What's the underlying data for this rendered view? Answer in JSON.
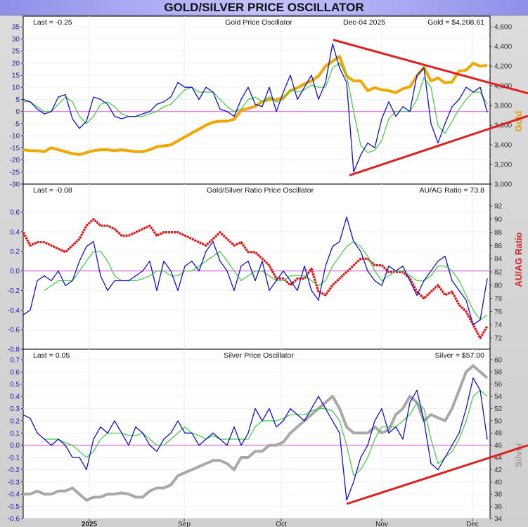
{
  "title": "GOLD/SILVER PRICE OSCILLATOR",
  "chart_data": [
    {
      "type": "line",
      "title": "Gold Price Oscillator",
      "last_label": "Last = -0.25",
      "date_label": "Dec-04  2025",
      "price_label": "Gold = $4,208.61",
      "right_axis_label": "Gold",
      "x_ticks": [
        {
          "day": 47,
          "label": "2025"
        },
        {
          "day": 114.5,
          "label": "Sep"
        },
        {
          "day": 183.5,
          "label": "Oct"
        },
        {
          "day": 255,
          "label": "Nov"
        },
        {
          "day": 319.5,
          "label": "Dec"
        }
      ],
      "xlim": [
        0,
        332
      ],
      "ylim_left": [
        -30,
        39.4
      ],
      "ylim_right": [
        3000,
        4709
      ],
      "left_ticks": [
        -30,
        -25,
        -20,
        -15,
        -10,
        -5,
        0,
        5,
        10,
        15,
        20,
        25,
        30,
        35
      ],
      "right_ticks": [
        3000,
        3200,
        3400,
        3600,
        3800,
        4000,
        4200,
        4400,
        4600
      ],
      "colors": {
        "oscillator": "#1010d0",
        "signal": "#3ccc3c",
        "price": "#f0a800",
        "zero": "#e080e0",
        "trend": "#e02020",
        "left_ticks": "#2020c0",
        "right_label": "#e0a000"
      },
      "series": [
        {
          "role": "oscillator",
          "axis": "left",
          "values": [
            5,
            4,
            1,
            -1,
            0,
            6,
            7,
            -3,
            -7,
            -4,
            6,
            5,
            3,
            -2,
            -3,
            -2,
            -2,
            -1,
            0,
            3,
            4,
            6,
            12,
            10,
            10,
            5,
            10,
            8,
            1,
            0,
            -2,
            5,
            10,
            3,
            2,
            10,
            0,
            8,
            15,
            5,
            10,
            15,
            5,
            12,
            28,
            18,
            12,
            -25,
            -18,
            -13,
            -15,
            -3,
            4,
            -2,
            2,
            0,
            15,
            18,
            -5,
            -13,
            -5,
            2,
            5,
            10,
            8,
            10,
            -0.25
          ]
        },
        {
          "role": "signal",
          "axis": "left",
          "values": [
            4,
            4,
            2,
            0,
            0,
            3,
            6,
            4,
            -2,
            -5,
            -2,
            3,
            4,
            2,
            -1,
            -2,
            -2,
            -2,
            -1,
            0,
            2,
            3,
            6,
            9,
            10,
            8,
            8,
            8,
            5,
            2,
            0,
            1,
            5,
            6,
            4,
            6,
            4,
            5,
            9,
            8,
            9,
            11,
            10,
            10,
            18,
            20,
            15,
            0,
            -14,
            -17,
            -16,
            -12,
            -3,
            0,
            0,
            0,
            5,
            14,
            10,
            -6,
            -9,
            -4,
            1,
            5,
            8,
            8,
            3
          ]
        },
        {
          "role": "price",
          "axis": "right",
          "values": [
            3350,
            3340,
            3340,
            3330,
            3370,
            3350,
            3330,
            3310,
            3300,
            3320,
            3340,
            3350,
            3350,
            3340,
            3350,
            3340,
            3330,
            3330,
            3350,
            3380,
            3390,
            3400,
            3440,
            3480,
            3520,
            3560,
            3600,
            3630,
            3640,
            3640,
            3660,
            3750,
            3770,
            3790,
            3840,
            3860,
            3860,
            3880,
            3950,
            3980,
            4020,
            4050,
            4100,
            4200,
            4250,
            4300,
            4100,
            4050,
            4050,
            3950,
            3980,
            3960,
            3950,
            3930,
            3970,
            3990,
            4100,
            4190,
            4050,
            4080,
            4030,
            4040,
            4150,
            4160,
            4230,
            4200,
            4209
          ]
        }
      ],
      "trendlines": [
        {
          "from": [
            220.5,
            29.6
          ],
          "to": [
            359,
            7.5
          ]
        },
        {
          "from": [
            232,
            -26.4
          ],
          "to": [
            359,
            -1.8
          ]
        }
      ]
    },
    {
      "type": "line",
      "title": "Gold/Silver Ratio Price Oscillator",
      "last_label": "Last = -0.08",
      "price_label": "AU/AG Ratio = 73.8",
      "right_axis_label": "AU/AG Ratio",
      "xlim": [
        0,
        332
      ],
      "ylim_left": [
        -0.8,
        0.887
      ],
      "ylim_right": [
        70.3,
        95.3
      ],
      "left_ticks": [
        -0.8,
        -0.6,
        -0.4,
        -0.2,
        0.0,
        0.2,
        0.4,
        0.6
      ],
      "right_ticks": [
        72,
        74,
        76,
        78,
        80,
        82,
        84,
        86,
        88,
        90,
        92
      ],
      "colors": {
        "oscillator": "#1010d0",
        "signal": "#3ccc3c",
        "price": "#e81010",
        "zero": "#e080e0",
        "left_ticks": "#2020c0",
        "right_label": "#e02020"
      },
      "series": [
        {
          "role": "oscillator",
          "axis": "left",
          "values": [
            -0.45,
            -0.4,
            -0.1,
            -0.05,
            -0.1,
            0,
            -0.15,
            -0.1,
            0.1,
            0.25,
            0.3,
            -0.05,
            -0.2,
            -0.1,
            -0.1,
            -0.1,
            -0.05,
            0,
            0.1,
            -0.2,
            0.1,
            0,
            -0.2,
            0.05,
            0.1,
            0,
            0.2,
            0.3,
            0.1,
            0,
            -0.2,
            0.05,
            0.1,
            -0.1,
            0.1,
            -0.2,
            -0.1,
            0,
            -0.1,
            -0.2,
            0.05,
            -0.2,
            -0.3,
            0.05,
            0.25,
            0.3,
            0.55,
            0.3,
            0.2,
            0,
            -0.1,
            -0.15,
            0.05,
            0,
            0.05,
            -0.1,
            -0.25,
            -0.1,
            0,
            0.1,
            0.15,
            -0.1,
            -0.2,
            -0.3,
            -0.55,
            -0.5,
            -0.08
          ]
        },
        {
          "role": "signal",
          "axis": "left",
          "values": [
            null,
            null,
            null,
            -0.2,
            -0.15,
            -0.1,
            -0.1,
            -0.1,
            0.0,
            0.1,
            0.2,
            0.2,
            0.1,
            -0.05,
            -0.1,
            -0.1,
            -0.1,
            -0.08,
            -0.05,
            0.0,
            0.0,
            -0.05,
            -0.05,
            0.0,
            0.0,
            0.05,
            0.1,
            0.15,
            0.2,
            0.1,
            0.0,
            -0.1,
            -0.05,
            0.0,
            0.0,
            -0.05,
            -0.1,
            -0.1,
            -0.05,
            -0.05,
            -0.05,
            -0.1,
            -0.15,
            -0.1,
            0.05,
            0.15,
            0.25,
            0.3,
            0.25,
            0.15,
            0.0,
            -0.1,
            -0.05,
            0.0,
            0.0,
            -0.05,
            -0.1,
            -0.1,
            -0.05,
            0.05,
            0.05,
            0.0,
            -0.1,
            -0.25,
            -0.4,
            -0.5,
            -0.45
          ]
        },
        {
          "role": "price",
          "axis": "right",
          "values": [
            88,
            86,
            86.5,
            86.5,
            86,
            85.5,
            85,
            86,
            87,
            89,
            90,
            89,
            89,
            88.5,
            87.5,
            87.5,
            88,
            88.5,
            89,
            87.5,
            88,
            88,
            88,
            87.5,
            87,
            86.5,
            86,
            87,
            88,
            87,
            86,
            86.5,
            85,
            85,
            84,
            83,
            81,
            81,
            80,
            81,
            81,
            82.5,
            79,
            78.5,
            80,
            81,
            82,
            83,
            84,
            84,
            83,
            83,
            82,
            82,
            82,
            81,
            79,
            78,
            79,
            80,
            78.5,
            79,
            77,
            76,
            74,
            72,
            73.8
          ]
        }
      ],
      "trendlines": []
    },
    {
      "type": "line",
      "title": "Silver Price Oscillator",
      "last_label": "Last = 0.05",
      "price_label": "Silver = $57.00",
      "right_axis_label": "Silver",
      "x_ticks": [
        {
          "day": 47,
          "label": "2025"
        },
        {
          "day": 114.5,
          "label": "Sep"
        },
        {
          "day": 183.5,
          "label": "Oct"
        },
        {
          "day": 255,
          "label": "Nov"
        },
        {
          "day": 319.5,
          "label": "Dec"
        }
      ],
      "xlim": [
        0,
        332
      ],
      "ylim_left": [
        -0.6,
        0.786
      ],
      "ylim_right": [
        34,
        61.7
      ],
      "left_ticks": [
        -0.6,
        -0.5,
        -0.4,
        -0.3,
        -0.2,
        -0.1,
        0.0,
        0.1,
        0.2,
        0.3,
        0.4,
        0.5,
        0.6,
        0.7
      ],
      "right_ticks": [
        34,
        36,
        38,
        40,
        42,
        44,
        46,
        48,
        50,
        52,
        54,
        56,
        58,
        60
      ],
      "colors": {
        "oscillator": "#1010d0",
        "signal": "#3ccc3c",
        "price": "#a8a8a8",
        "zero": "#e080e0",
        "trend": "#e02020",
        "left_ticks": "#2020c0",
        "right_label": "#a0a0a0"
      },
      "series": [
        {
          "role": "oscillator",
          "axis": "left",
          "values": [
            0.25,
            0.22,
            0.1,
            0.05,
            0,
            0.05,
            0,
            -0.1,
            -0.1,
            -0.2,
            0.05,
            0.15,
            0.1,
            0.2,
            0.1,
            0,
            0.15,
            0.1,
            0,
            -0.05,
            0.05,
            0.1,
            0.2,
            0.1,
            0.1,
            0,
            0.05,
            0.1,
            0.05,
            0,
            0.15,
            0,
            0.1,
            0.3,
            0.2,
            0.3,
            0.15,
            0.2,
            0.3,
            0.25,
            0.2,
            0.3,
            0.4,
            0.3,
            0.2,
            0.1,
            -0.45,
            -0.3,
            -0.1,
            0,
            0.2,
            0.3,
            0.1,
            0.15,
            0.05,
            0.35,
            0.45,
            0.2,
            -0.15,
            -0.2,
            -0.1,
            0,
            0.1,
            0.3,
            0.55,
            0.45,
            0.05
          ]
        },
        {
          "role": "signal",
          "axis": "left",
          "values": [
            null,
            null,
            null,
            0.05,
            0.05,
            0.05,
            0.02,
            0,
            -0.05,
            -0.1,
            -0.05,
            0.05,
            0.1,
            0.1,
            0.1,
            0.08,
            0.08,
            0.1,
            0.05,
            0.0,
            0.0,
            0.05,
            0.1,
            0.15,
            0.1,
            0.08,
            0.05,
            0.08,
            0.05,
            0.05,
            0.05,
            0.05,
            0.05,
            0.15,
            0.2,
            0.2,
            0.2,
            0.22,
            0.25,
            0.25,
            0.25,
            0.28,
            0.3,
            0.3,
            0.28,
            0.2,
            0.0,
            -0.25,
            -0.2,
            -0.1,
            0.05,
            0.15,
            0.15,
            0.15,
            0.2,
            0.25,
            0.35,
            0.3,
            0.05,
            -0.15,
            -0.1,
            -0.05,
            0.05,
            0.2,
            0.4,
            0.45,
            0.4
          ]
        },
        {
          "role": "price",
          "axis": "right",
          "values": [
            38,
            38,
            38.5,
            38,
            38,
            38.5,
            38.5,
            39,
            38,
            37,
            37.5,
            37.5,
            38,
            38,
            38.2,
            38,
            37.5,
            37.5,
            38.5,
            39,
            39,
            39.5,
            41,
            41.5,
            42,
            42.5,
            43,
            43.5,
            43.5,
            43,
            42,
            44,
            44,
            45,
            45,
            46,
            46,
            46.5,
            48,
            49,
            50,
            51,
            52,
            53,
            54,
            52,
            49,
            48,
            48,
            48,
            49,
            48,
            48.5,
            51,
            52,
            54,
            53,
            50,
            51,
            50.5,
            50,
            52,
            55,
            58,
            59,
            58,
            57
          ]
        }
      ],
      "trendlines": [
        {
          "from": [
            230,
            -0.48
          ],
          "to": [
            359,
            0.0
          ]
        }
      ]
    }
  ]
}
